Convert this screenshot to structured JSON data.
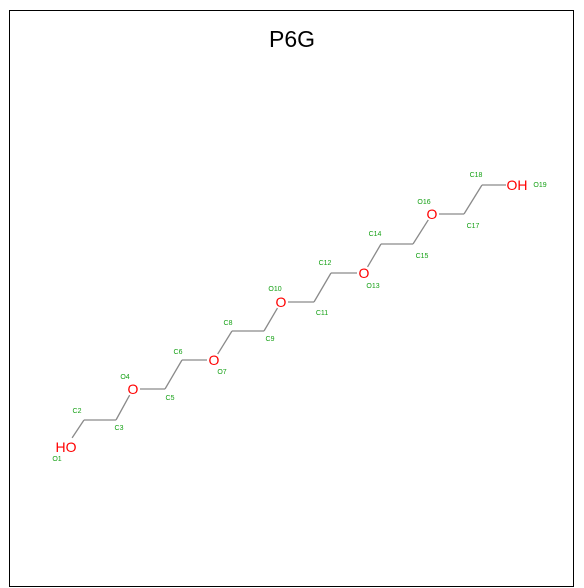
{
  "title": "P6G",
  "colors": {
    "bond": "#8a8a8a",
    "oxygen": "#ff0000",
    "atom_label": "#14a014",
    "title": "#000000"
  },
  "atoms": [
    {
      "id": "O1",
      "element": "O",
      "display": "HO",
      "label": "O1"
    },
    {
      "id": "C2",
      "element": "C",
      "label": "C2"
    },
    {
      "id": "C3",
      "element": "C",
      "label": "C3"
    },
    {
      "id": "O4",
      "element": "O",
      "display": "O",
      "label": "O4"
    },
    {
      "id": "C5",
      "element": "C",
      "label": "C5"
    },
    {
      "id": "C6",
      "element": "C",
      "label": "C6"
    },
    {
      "id": "O7",
      "element": "O",
      "display": "O",
      "label": "O7"
    },
    {
      "id": "C8",
      "element": "C",
      "label": "C8"
    },
    {
      "id": "C9",
      "element": "C",
      "label": "C9"
    },
    {
      "id": "O10",
      "element": "O",
      "display": "O",
      "label": "O10"
    },
    {
      "id": "C11",
      "element": "C",
      "label": "C11"
    },
    {
      "id": "C12",
      "element": "C",
      "label": "C12"
    },
    {
      "id": "O13",
      "element": "O",
      "display": "O",
      "label": "O13"
    },
    {
      "id": "C14",
      "element": "C",
      "label": "C14"
    },
    {
      "id": "C15",
      "element": "C",
      "label": "C15"
    },
    {
      "id": "O16",
      "element": "O",
      "display": "O",
      "label": "O16"
    },
    {
      "id": "C17",
      "element": "C",
      "label": "C17"
    },
    {
      "id": "C18",
      "element": "C",
      "label": "C18"
    },
    {
      "id": "O19",
      "element": "O",
      "display": "OH",
      "label": "O19"
    }
  ],
  "bonds": [
    [
      "O1",
      "C2"
    ],
    [
      "C2",
      "C3"
    ],
    [
      "C3",
      "O4"
    ],
    [
      "O4",
      "C5"
    ],
    [
      "C5",
      "C6"
    ],
    [
      "C6",
      "O7"
    ],
    [
      "O7",
      "C8"
    ],
    [
      "C8",
      "C9"
    ],
    [
      "C9",
      "O10"
    ],
    [
      "O10",
      "C11"
    ],
    [
      "C11",
      "C12"
    ],
    [
      "C12",
      "O13"
    ],
    [
      "O13",
      "C14"
    ],
    [
      "C14",
      "C15"
    ],
    [
      "C15",
      "O16"
    ],
    [
      "O16",
      "C17"
    ],
    [
      "C17",
      "C18"
    ],
    [
      "C18",
      "O19"
    ]
  ]
}
